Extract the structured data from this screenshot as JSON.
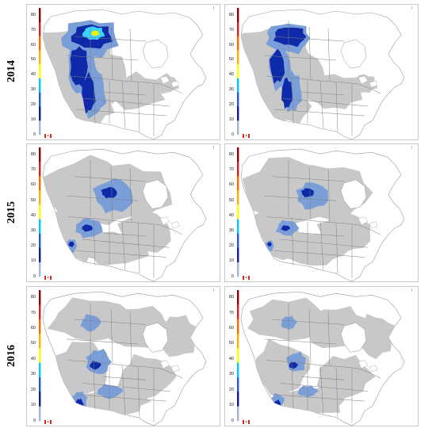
{
  "years": [
    "2014",
    "2015",
    "2016"
  ],
  "scale": {
    "ticks": [
      "80",
      "70",
      "60",
      "50",
      "40",
      "30",
      "20",
      "10",
      "0"
    ],
    "colors": [
      "#8b0000",
      "#d62020",
      "#ff6a00",
      "#ffb000",
      "#ffff00",
      "#00c8ff",
      "#1e5bd8",
      "#0a1e96",
      "#9fb8d8"
    ],
    "max": 85
  },
  "colors": {
    "land": "#ffffff",
    "background_area": "#c8c8c8",
    "low": "#7a9ed8",
    "mid": "#0f2aa8",
    "high": "#3bd3ff",
    "peak": "#f5f500",
    "border": "#808080"
  },
  "panels": [
    {
      "year": "2014",
      "column": "left",
      "levels": [
        "background_area",
        "low",
        "mid",
        "high",
        "peak"
      ],
      "extent": "western-canada-large"
    },
    {
      "year": "2014",
      "column": "right",
      "levels": [
        "background_area",
        "low",
        "mid"
      ],
      "extent": "western-canada-large"
    },
    {
      "year": "2015",
      "column": "left",
      "levels": [
        "background_area",
        "low",
        "mid"
      ],
      "extent": "central-canada"
    },
    {
      "year": "2015",
      "column": "right",
      "levels": [
        "background_area",
        "low",
        "mid"
      ],
      "extent": "central-canada"
    },
    {
      "year": "2016",
      "column": "left",
      "levels": [
        "background_area",
        "low",
        "mid"
      ],
      "extent": "western-us"
    },
    {
      "year": "2016",
      "column": "right",
      "levels": [
        "background_area",
        "low",
        "mid"
      ],
      "extent": "western-us"
    }
  ]
}
